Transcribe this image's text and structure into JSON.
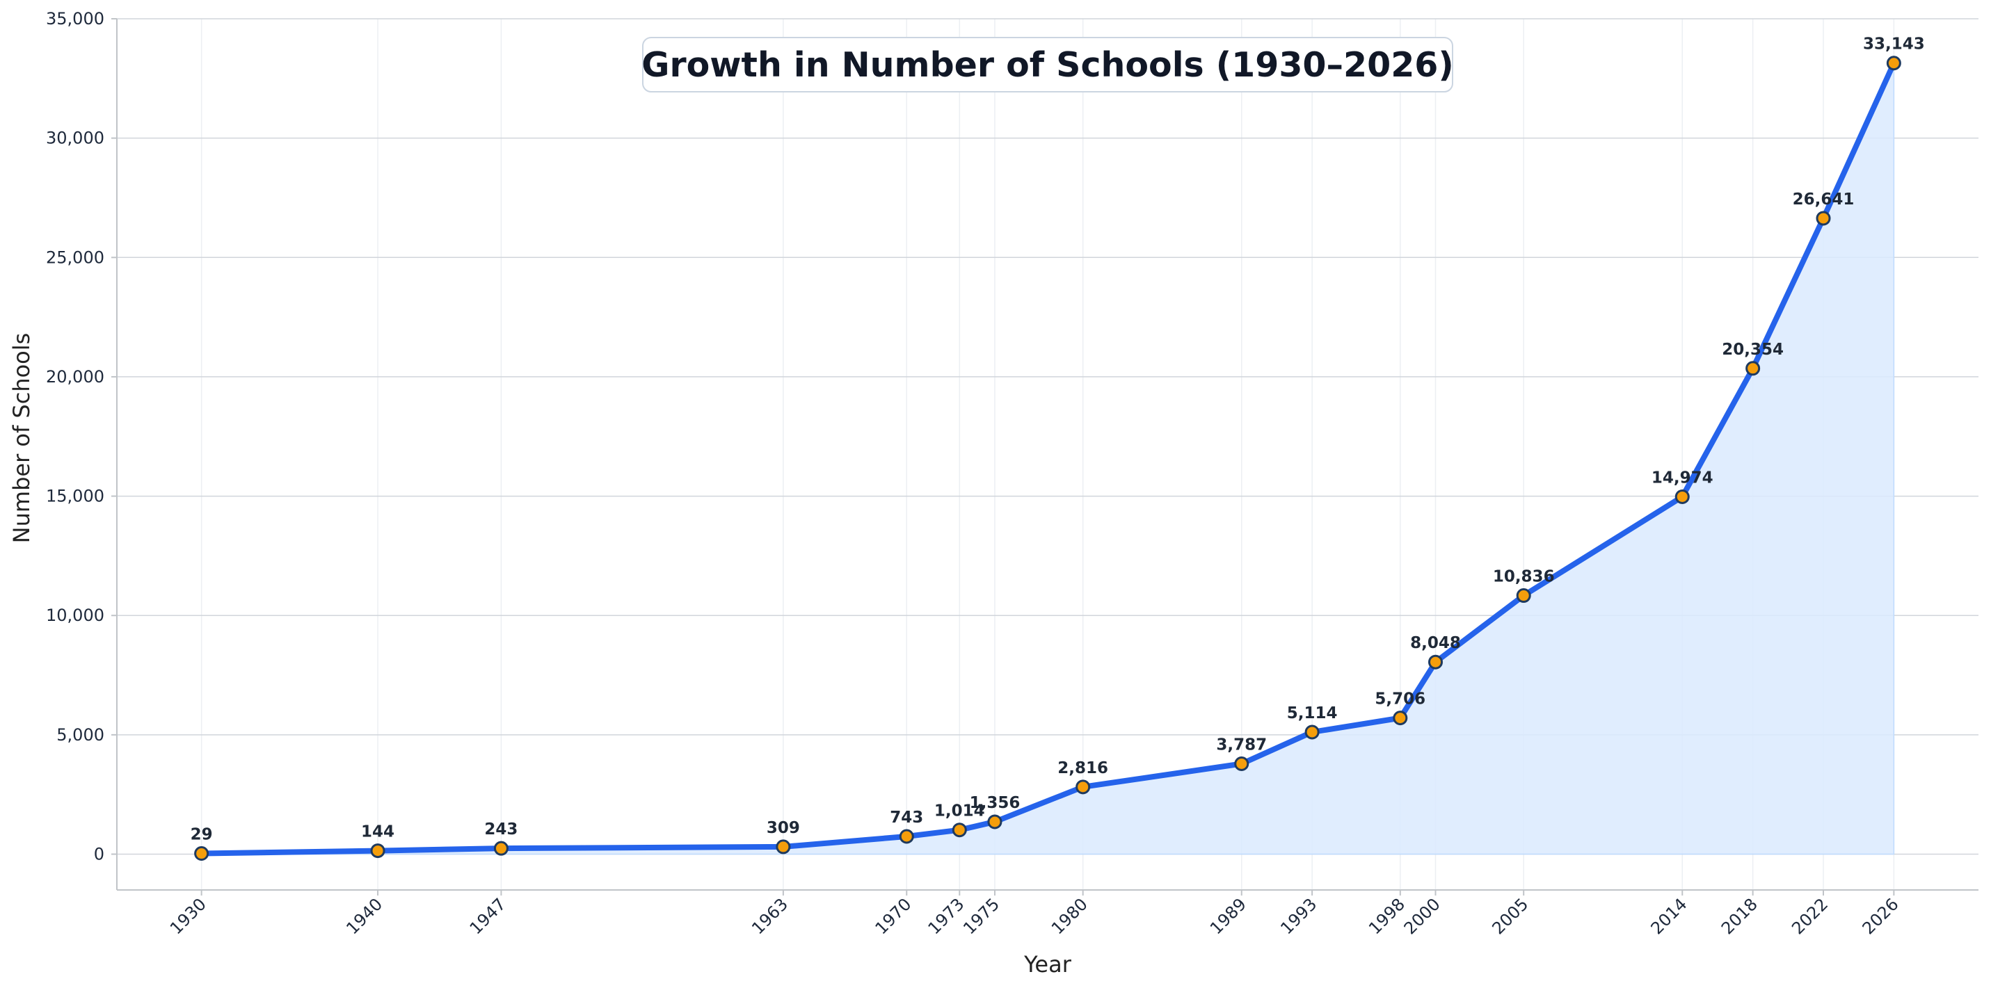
{
  "chart_data": {
    "type": "area",
    "title": "Growth in Number of Schools (1930–2026)",
    "xlabel": "Year",
    "ylabel": "Number of Schools",
    "x": [
      1930,
      1940,
      1947,
      1963,
      1970,
      1973,
      1975,
      1980,
      1989,
      1993,
      1998,
      2000,
      2005,
      2014,
      2018,
      2022,
      2026
    ],
    "x_tick_labels": [
      "1930",
      "1940",
      "1947",
      "1963",
      "1970",
      "1973",
      "1975",
      "1980",
      "1989",
      "1993",
      "1998",
      "2000",
      "2005",
      "2014",
      "2018",
      "2022",
      "2026"
    ],
    "series": [
      {
        "values": [
          29,
          144,
          243,
          309,
          743,
          1014,
          1356,
          2816,
          3787,
          5114,
          5706,
          8048,
          10836,
          14974,
          20354,
          26641,
          33143
        ],
        "labels": [
          "29",
          "144",
          "243",
          "309",
          "743",
          "1,014",
          "1,356",
          "2,816",
          "3,787",
          "5,114",
          "5,706",
          "8,048",
          "10,836",
          "14,974",
          "20,354",
          "26,641",
          "33,143"
        ]
      }
    ],
    "y_ticks": [
      0,
      5000,
      10000,
      15000,
      20000,
      25000,
      30000,
      35000
    ],
    "y_tick_labels": [
      "0",
      "5,000",
      "10,000",
      "15,000",
      "20,000",
      "25,000",
      "30,000",
      "35,000"
    ],
    "xlim": [
      1925.2,
      2030.8
    ],
    "ylim": [
      -1500,
      35000
    ],
    "grid": true,
    "legend": "none",
    "colors": {
      "line": "#2563eb",
      "fill": "#dbeafe",
      "marker_fill": "#f59e0b",
      "marker_edge": "#1e3a5f",
      "grid": "#d1d5db"
    }
  }
}
